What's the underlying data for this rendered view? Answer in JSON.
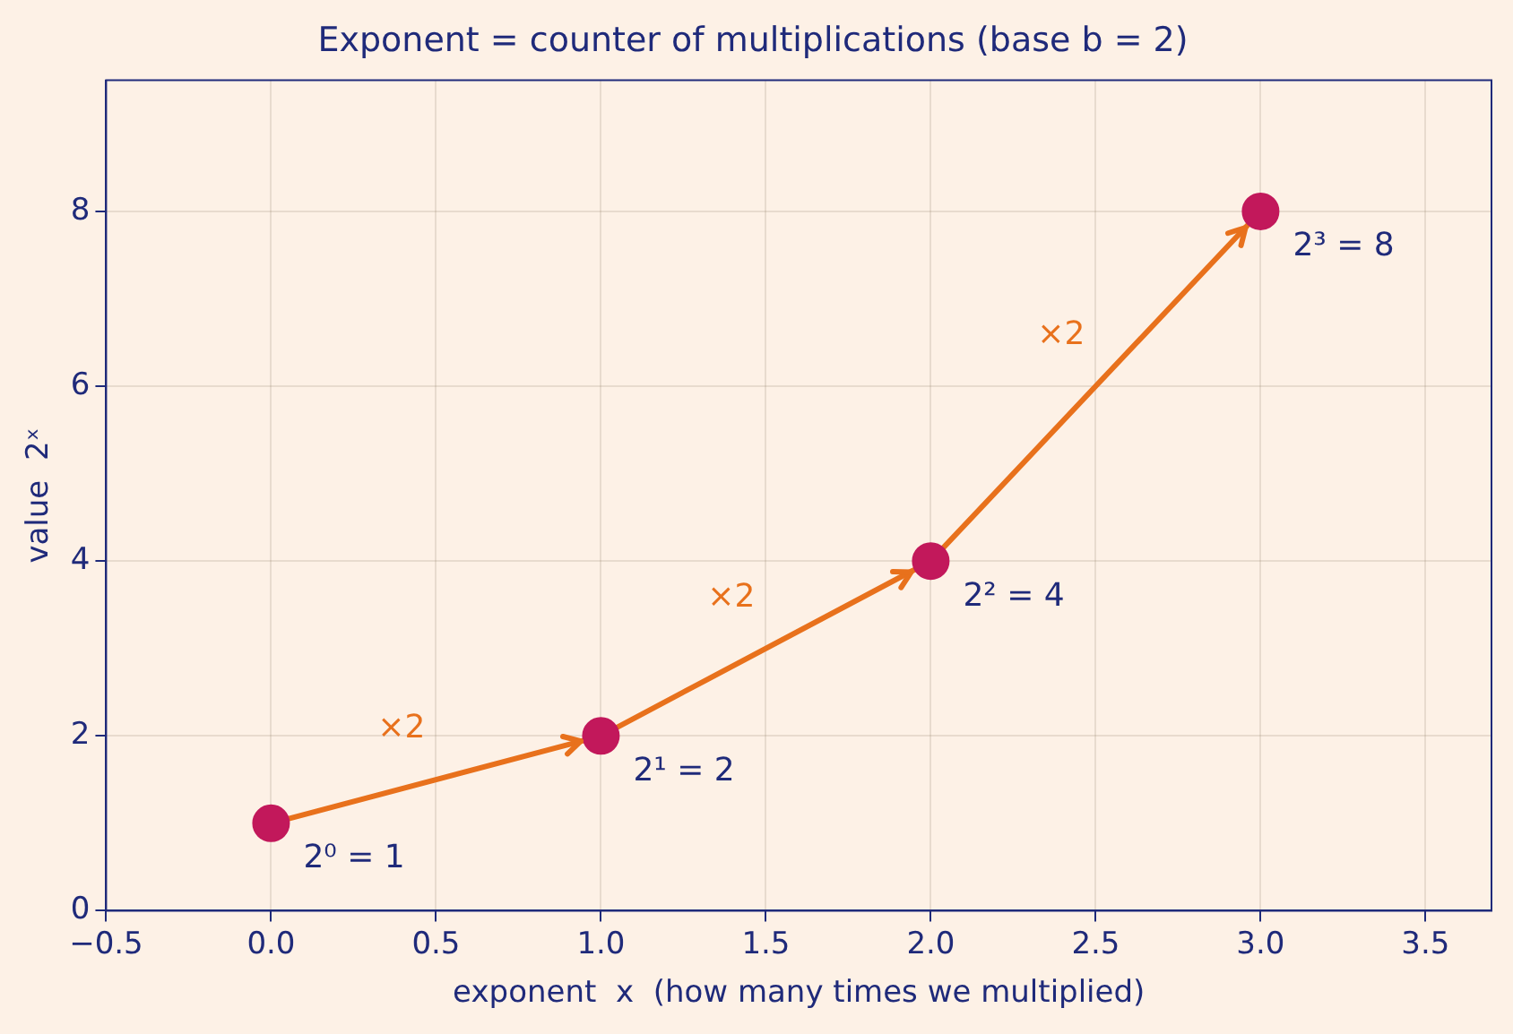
{
  "chart_data": {
    "type": "scatter",
    "title": "Exponent = counter of multiplications (base b = 2)",
    "xlabel": "exponent  x  (how many times we multiplied)",
    "ylabel": "value  2ˣ",
    "x": [
      0,
      1,
      2,
      3
    ],
    "series": [
      {
        "type": "line",
        "color": "#e8711c",
        "values": [
          1,
          2,
          4,
          8
        ],
        "marker": "none"
      },
      {
        "type": "scatter",
        "color": "#c2185b",
        "values": [
          1,
          2,
          4,
          8
        ],
        "marker": "circle",
        "value_labels": [
          "2⁰ = 1",
          "2¹ = 2",
          "2² = 4",
          "2³ = 8"
        ]
      }
    ],
    "xlim": [
      -0.5,
      3.7
    ],
    "xticks": [
      {
        "value": -0.5,
        "label": "−0.5"
      },
      {
        "value": 0,
        "label": "0.0"
      },
      {
        "value": 0.5,
        "label": "0.5"
      },
      {
        "value": 1,
        "label": "1.0"
      },
      {
        "value": 1.5,
        "label": "1.5"
      },
      {
        "value": 2,
        "label": "2.0"
      },
      {
        "value": 2.5,
        "label": "2.5"
      },
      {
        "value": 3,
        "label": "3.0"
      },
      {
        "value": 3.5,
        "label": "3.5"
      }
    ],
    "ylim": [
      0,
      9.5
    ],
    "yticks": [
      0,
      2,
      4,
      6,
      8
    ],
    "grid": true,
    "legend": false,
    "annotations": [
      "×2",
      "×2",
      "×2"
    ]
  }
}
